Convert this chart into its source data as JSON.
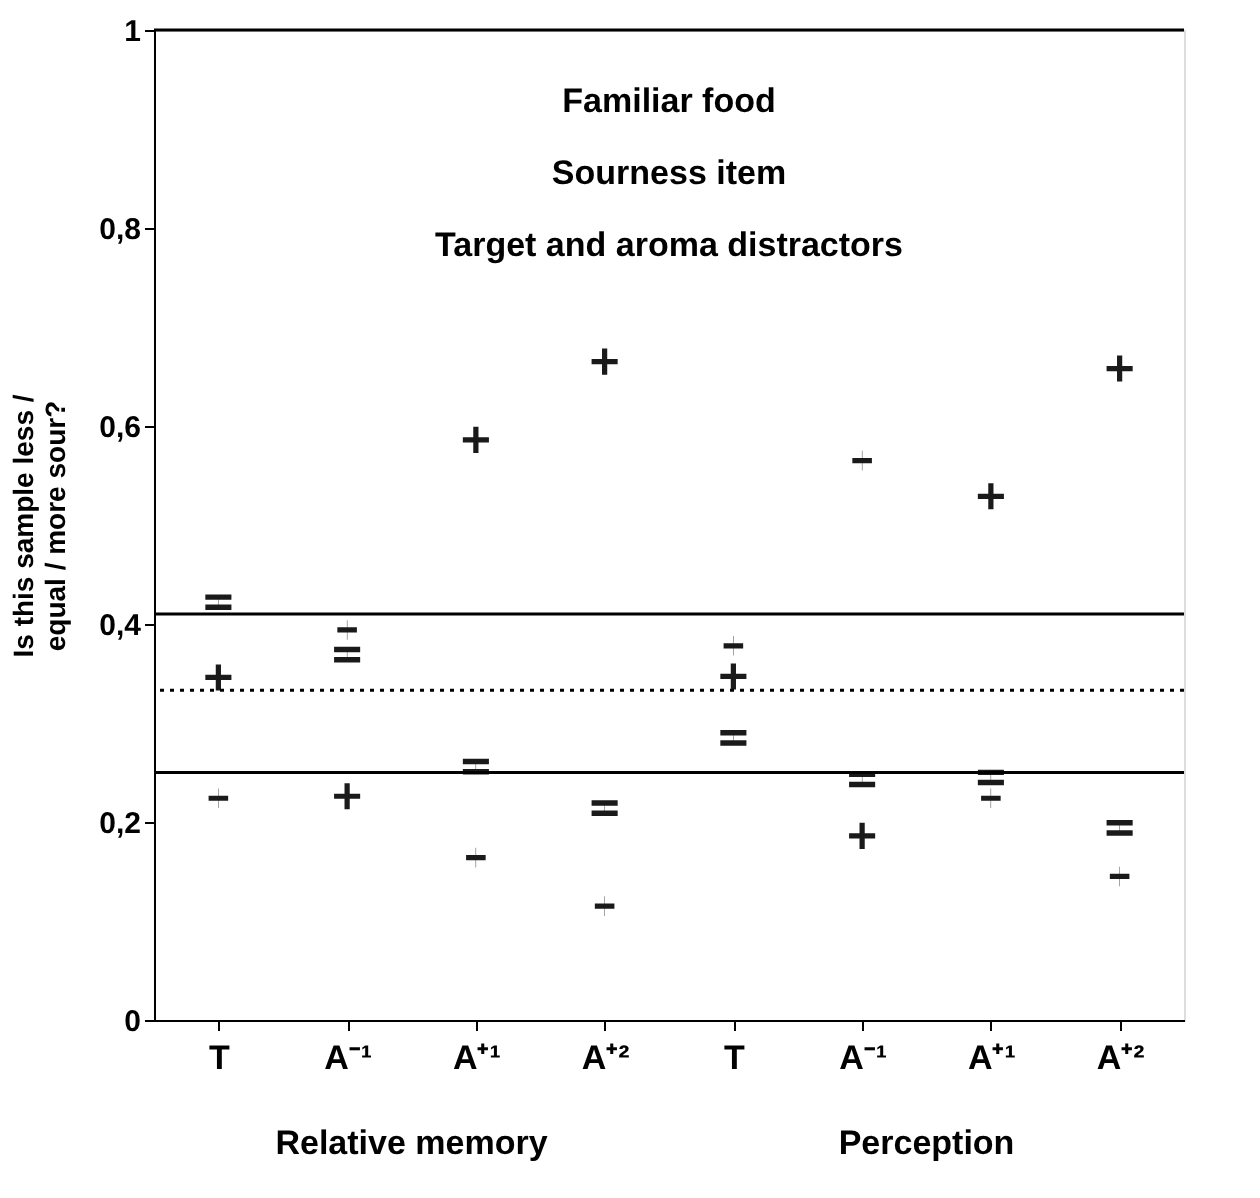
{
  "chart_data": {
    "type": "scatter",
    "ylabel": "Is this sample less / equal / more sour?",
    "categories": [
      "T",
      "A⁻¹",
      "A⁺¹",
      "A⁺²",
      "T",
      "A⁻¹",
      "A⁺¹",
      "A⁺²"
    ],
    "series": [
      {
        "marker": "cross",
        "color": "#1a1a1a",
        "values": [
          0.346,
          0.226,
          0.586,
          0.665,
          0.347,
          0.186,
          0.529,
          0.658
        ]
      },
      {
        "color": "#1a1a1a",
        "values": [
          0.422,
          0.369,
          0.256,
          0.214,
          0.285,
          0.243,
          0.245,
          0.194
        ]
      },
      {
        "color": "#1a1a1a",
        "values": [
          0.224,
          0.394,
          0.164,
          0.115,
          0.378,
          0.565,
          0.224,
          0.145
        ]
      }
    ],
    "ylim": [
      0,
      1
    ],
    "yticks": [
      0,
      {
        "value": 0.2,
        "label": "0,2"
      },
      {
        "value": 0.4,
        "label": "0,4"
      },
      {
        "value": 0.6,
        "label": "0,6"
      },
      {
        "value": 0.8,
        "label": "0,8"
      },
      1
    ],
    "ref_lines": [
      {
        "axis": "y",
        "value": 0.41,
        "line_style": "solid"
      },
      {
        "axis": "y",
        "value": 0.333,
        "line_style": "dotted"
      },
      {
        "axis": "y",
        "value": 0.25,
        "line_style": "solid"
      }
    ],
    "annotations": [
      "Familiar food",
      "Sourness item",
      "Target and aroma distractors",
      "Relative memory",
      "Perception"
    ],
    "grid": false,
    "legend": false
  }
}
